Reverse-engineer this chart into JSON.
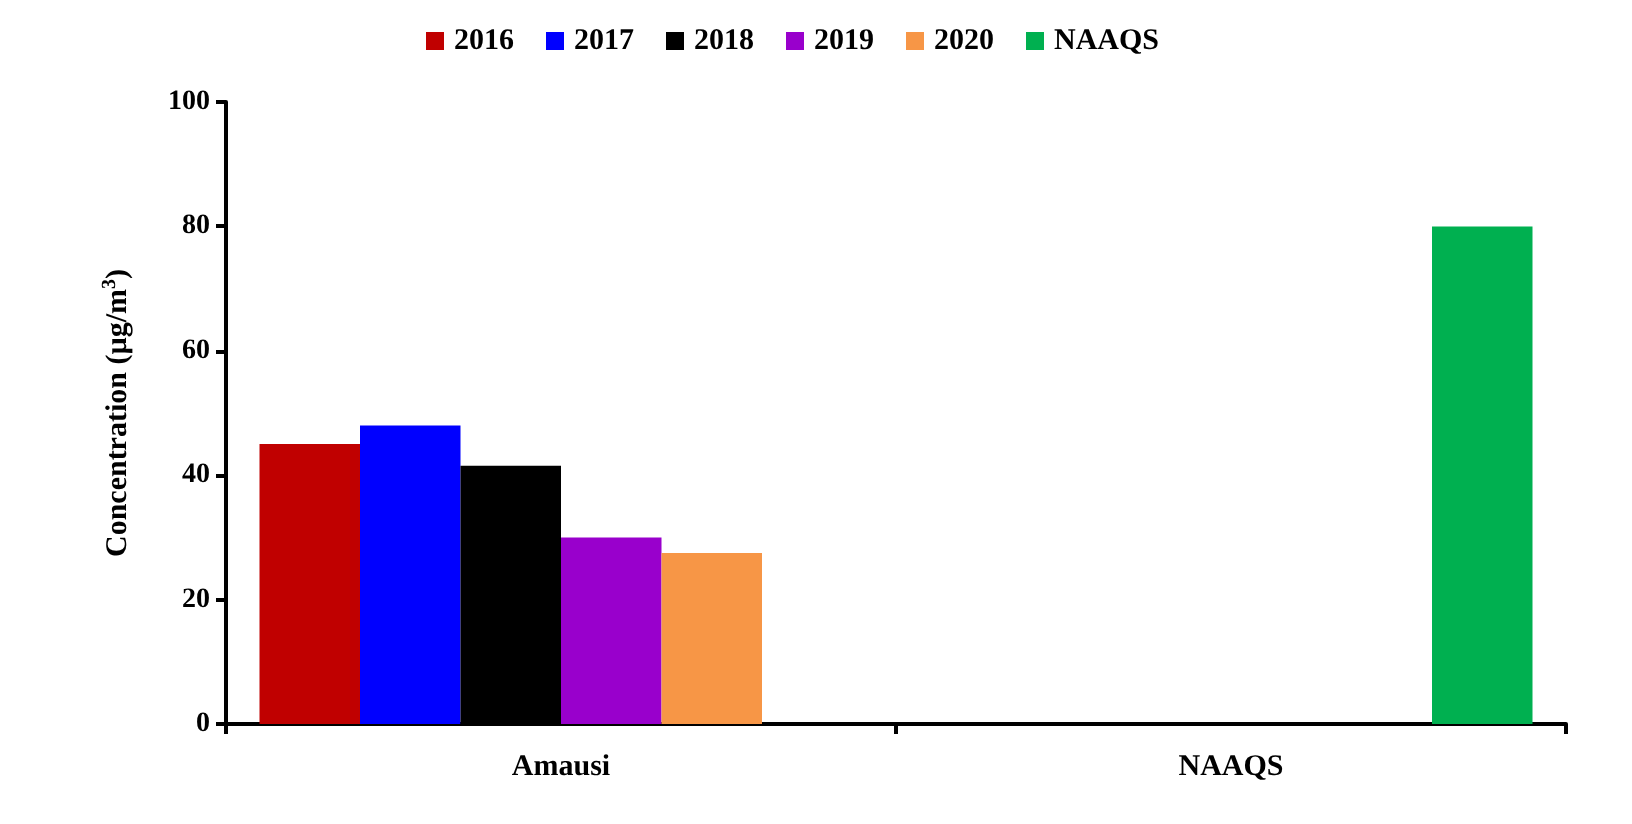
{
  "chart_data": {
    "type": "bar",
    "categories": [
      "Amausi",
      "NAAQS"
    ],
    "ylabel": "Concentration (µg/m$^{3}$)",
    "ylim": [
      0,
      100
    ],
    "yticks": [
      0,
      20,
      40,
      60,
      80,
      100
    ],
    "grid": false,
    "legend": "top",
    "series": [
      {
        "name": "2016",
        "color": "#c00000",
        "values": [
          45,
          null
        ]
      },
      {
        "name": "2017",
        "color": "#0000ff",
        "values": [
          48,
          null
        ]
      },
      {
        "name": "2018",
        "color": "#000000",
        "values": [
          41.5,
          null
        ]
      },
      {
        "name": "2019",
        "color": "#9900cc",
        "values": [
          30,
          null
        ]
      },
      {
        "name": "2020",
        "color": "#f79646",
        "values": [
          27.5,
          null
        ]
      },
      {
        "name": "NAAQS",
        "color": "#00b050",
        "values": [
          null,
          80
        ]
      }
    ]
  }
}
